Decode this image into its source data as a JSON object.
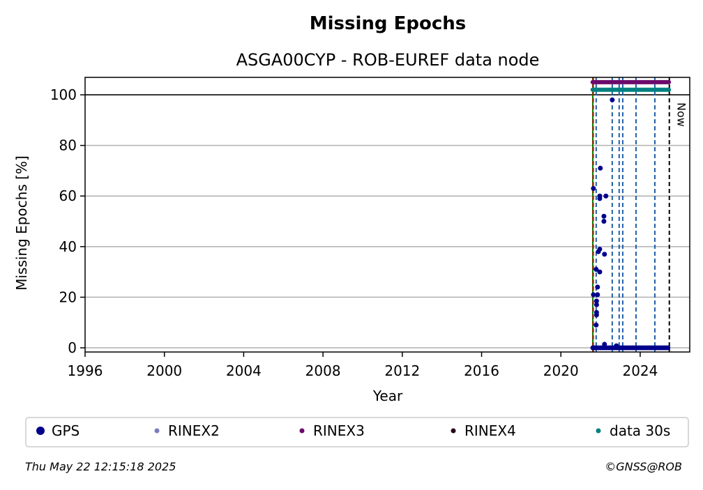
{
  "chart_data": {
    "type": "scatter",
    "title": "Missing Epochs",
    "subtitle": "ASGA00CYP - ROB-EUREF data node",
    "x_label": "Year",
    "y_label": "Missing Epochs [%]",
    "xlim": [
      1996,
      2026.5
    ],
    "ylim": [
      -1.65,
      106.9
    ],
    "xticks": [
      1996,
      2000,
      2004,
      2008,
      2012,
      2016,
      2020,
      2024
    ],
    "yticks": [
      0,
      20,
      40,
      60,
      80,
      100
    ],
    "grid": true,
    "hline": {
      "y": 100,
      "color": "#000000"
    },
    "vlines": [
      {
        "x": 2021.61,
        "color": "#008000",
        "dash": false
      },
      {
        "x": 2021.63,
        "color": "#cc0000",
        "dash": true
      },
      {
        "x": 2021.78,
        "color": "#1f5fa8",
        "dash": true
      },
      {
        "x": 2022.59,
        "color": "#1f5fa8",
        "dash": true
      },
      {
        "x": 2022.94,
        "color": "#1f5fa8",
        "dash": true
      },
      {
        "x": 2023.12,
        "color": "#1f5fa8",
        "dash": true
      },
      {
        "x": 2023.79,
        "color": "#1f5fa8",
        "dash": true
      },
      {
        "x": 2024.74,
        "color": "#1f5fa8",
        "dash": true
      },
      {
        "x": 2025.47,
        "color": "#000000",
        "dash": true
      }
    ],
    "annotation": {
      "text": "Now",
      "x": 2025.47
    },
    "series": [
      {
        "name": "GPS",
        "color": "#00008b",
        "style": "dots",
        "x": [
          2021.61,
          2021.64,
          2021.64,
          2021.78,
          2021.8,
          2021.8,
          2021.8,
          2021.8,
          2021.85,
          2021.85,
          2021.78,
          2021.99,
          2021.96,
          2021.96,
          2021.89,
          2021.96,
          2021.96,
          2022.17,
          2022.17,
          2022.27,
          2022.2,
          2022.59,
          2022.2,
          2022.8,
          2021.7,
          2021.8,
          2021.9,
          2022.0,
          2022.1,
          2022.2,
          2022.3,
          2022.4,
          2022.5,
          2022.6,
          2022.7,
          2022.8,
          2022.9,
          2023.0,
          2023.1,
          2023.2,
          2023.3,
          2023.4,
          2023.5,
          2023.6,
          2023.7,
          2023.8,
          2023.9,
          2024.0,
          2024.1,
          2024.2,
          2024.3,
          2024.4,
          2024.5,
          2024.6,
          2024.7,
          2024.8,
          2024.9,
          2025.0,
          2025.1,
          2025.2,
          2025.3,
          2025.4
        ],
        "values": [
          0,
          21,
          63,
          9,
          13,
          14,
          17,
          18.5,
          21,
          24,
          31,
          71,
          30,
          39,
          38,
          60,
          59,
          52,
          50,
          60,
          37,
          98,
          1.4,
          0.8,
          0,
          0,
          0,
          0,
          0,
          0,
          0,
          0,
          0,
          0,
          0,
          0,
          0,
          0,
          0,
          0,
          0,
          0,
          0,
          0,
          0,
          0,
          0,
          0,
          0,
          0,
          0,
          0,
          0,
          0,
          0,
          0,
          0,
          0,
          0,
          0,
          0,
          0
        ]
      },
      {
        "name": "RINEX2",
        "color": "#7b7bbf",
        "style": "dots",
        "x": [],
        "values": []
      },
      {
        "name": "RINEX3",
        "color": "#6b0a6b",
        "style": "band",
        "x": [
          2021.6,
          2025.45
        ],
        "values": [
          105,
          105
        ]
      },
      {
        "name": "RINEX4",
        "color": "#2a0020",
        "style": "dots",
        "x": [],
        "values": []
      },
      {
        "name": "data 30s",
        "color": "#008080",
        "style": "band",
        "x": [
          2021.6,
          2025.45
        ],
        "values": [
          102,
          102
        ]
      }
    ]
  },
  "footer": {
    "date": "Thu May 22 12:15:18 2025",
    "credit": "©GNSS@ROB"
  }
}
